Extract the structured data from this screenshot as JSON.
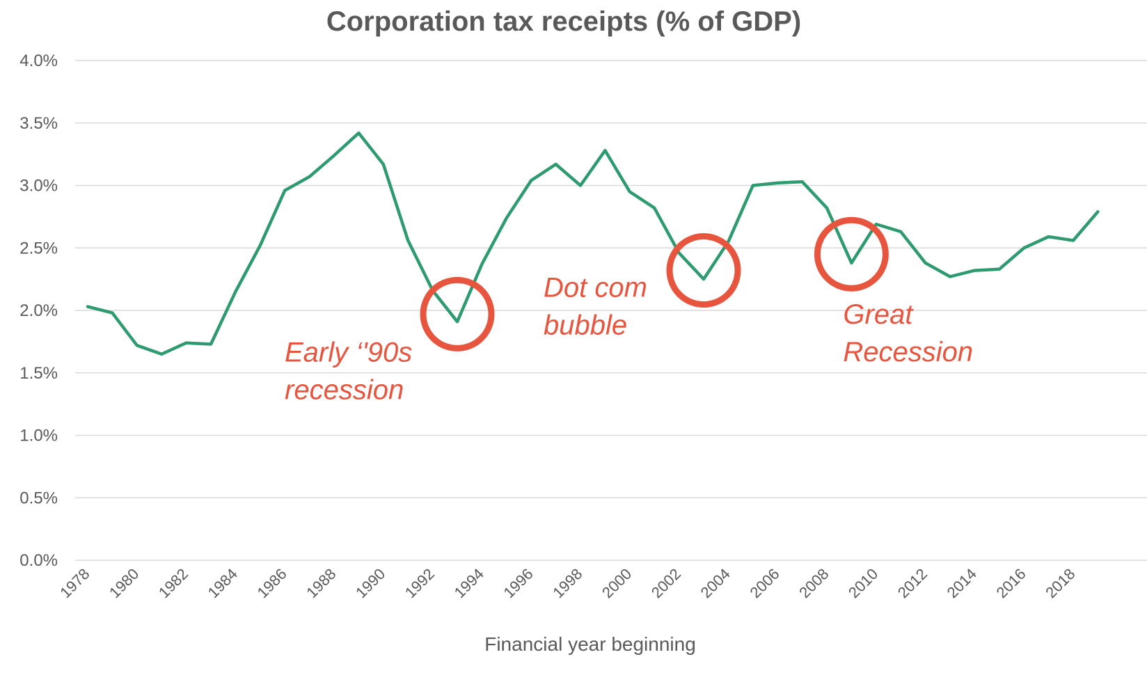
{
  "chart_data": {
    "type": "line",
    "title": "Corporation tax receipts (% of GDP)",
    "xlabel": "Financial year beginning",
    "ylabel": "",
    "ylim": [
      0,
      4
    ],
    "y_ticks": [
      {
        "value": 0.0,
        "label": "0.0%"
      },
      {
        "value": 0.5,
        "label": "0.5%"
      },
      {
        "value": 1.0,
        "label": "1.0%"
      },
      {
        "value": 1.5,
        "label": "1.5%"
      },
      {
        "value": 2.0,
        "label": "2.0%"
      },
      {
        "value": 2.5,
        "label": "2.5%"
      },
      {
        "value": 3.0,
        "label": "3.0%"
      },
      {
        "value": 3.5,
        "label": "3.5%"
      },
      {
        "value": 4.0,
        "label": "4.0%"
      }
    ],
    "x_ticks": [
      "1978",
      "1980",
      "1982",
      "1984",
      "1986",
      "1988",
      "1990",
      "1992",
      "1994",
      "1996",
      "1998",
      "2000",
      "2002",
      "2004",
      "2006",
      "2008",
      "2010",
      "2012",
      "2014",
      "2016",
      "2018"
    ],
    "grid": "horizontal",
    "legend": "none",
    "series": [
      {
        "color": "#2e9a6f",
        "x": [
          1978,
          1979,
          1980,
          1981,
          1982,
          1983,
          1984,
          1985,
          1986,
          1987,
          1988,
          1989,
          1990,
          1991,
          1992,
          1993,
          1994,
          1995,
          1996,
          1997,
          1998,
          1999,
          2000,
          2001,
          2002,
          2003,
          2004,
          2005,
          2006,
          2007,
          2008,
          2009,
          2010,
          2011,
          2012,
          2013,
          2014,
          2015,
          2016,
          2017,
          2018,
          2019
        ],
        "values": [
          2.03,
          1.98,
          1.72,
          1.65,
          1.74,
          1.73,
          2.15,
          2.52,
          2.96,
          3.07,
          3.24,
          3.42,
          3.17,
          2.56,
          2.16,
          1.91,
          2.37,
          2.74,
          3.04,
          3.17,
          3.0,
          3.28,
          2.95,
          2.82,
          2.46,
          2.25,
          2.55,
          3.0,
          3.02,
          3.03,
          2.82,
          2.38,
          2.69,
          2.63,
          2.38,
          2.27,
          2.32,
          2.33,
          2.5,
          2.59,
          2.56,
          2.79
        ]
      }
    ],
    "annotations": [
      {
        "lines": [
          "Early ‘'90s",
          "recession"
        ],
        "year": 1993,
        "value": 1.97,
        "text_position": "below-left",
        "color": "#e8553e"
      },
      {
        "lines": [
          "Dot com",
          "bubble"
        ],
        "year": 2003,
        "value": 2.32,
        "text_position": "left",
        "color": "#e8553e"
      },
      {
        "lines": [
          "Great",
          "Recession"
        ],
        "year": 2009,
        "value": 2.45,
        "text_position": "below-right",
        "color": "#e8553e"
      }
    ]
  }
}
